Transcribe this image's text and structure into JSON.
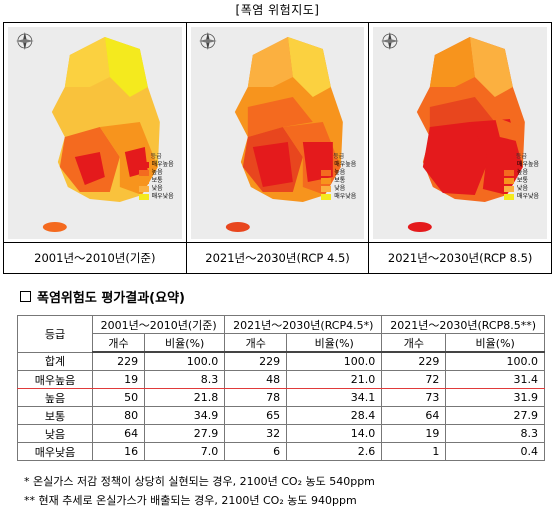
{
  "page_title": "[폭염 위험지도]",
  "maps": [
    {
      "caption": "2001년～2010년(기준)"
    },
    {
      "caption": "2021년～2030년(RCP 4.5)"
    },
    {
      "caption": "2021년～2030년(RCP 8.5)"
    }
  ],
  "legend": {
    "header": "등급",
    "items": [
      {
        "label": "매우높음",
        "color": "#e41a1c"
      },
      {
        "label": "높음",
        "color": "#f46a1f"
      },
      {
        "label": "보통",
        "color": "#f7941d"
      },
      {
        "label": "낮음",
        "color": "#fbb040"
      },
      {
        "label": "매우낮음",
        "color": "#f4ea1e"
      }
    ]
  },
  "section_title": "폭염위험도 평가결과(요약)",
  "table": {
    "grade_header": "등급",
    "period_headers": [
      "2001년～2010년(기준)",
      "2021년～2030년(RCP4.5*)",
      "2021년～2030년(RCP8.5**)"
    ],
    "count_header": "개수",
    "ratio_header": "비율(%)",
    "rows": [
      {
        "label": "합계",
        "values": [
          "229",
          "100.0",
          "229",
          "100.0",
          "229",
          "100.0"
        ]
      },
      {
        "label": "매우높음",
        "values": [
          "19",
          "8.3",
          "48",
          "21.0",
          "72",
          "31.4"
        ]
      },
      {
        "label": "높음",
        "values": [
          "50",
          "21.8",
          "78",
          "34.1",
          "73",
          "31.9"
        ]
      },
      {
        "label": "보통",
        "values": [
          "80",
          "34.9",
          "65",
          "28.4",
          "64",
          "27.9"
        ]
      },
      {
        "label": "낮음",
        "values": [
          "64",
          "27.9",
          "32",
          "14.0",
          "19",
          "8.3"
        ]
      },
      {
        "label": "매우낮음",
        "values": [
          "16",
          "7.0",
          "6",
          "2.6",
          "1",
          "0.4"
        ]
      }
    ]
  },
  "notes": [
    "* 온실가스 저감 정책이 상당히 실현되는 경우, 2100년 CO₂ 농도 540ppm",
    "** 현재 추세로 온실가스가 배출되는 경우, 2100년 CO₂ 농도 940ppm"
  ]
}
